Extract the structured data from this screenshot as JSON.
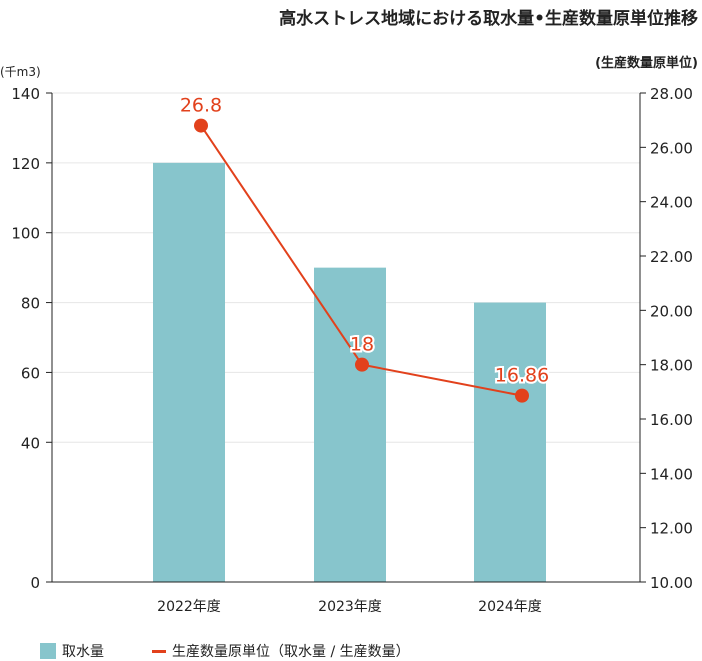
{
  "title": "高水ストレス地域における取水量•生産数量原単位推移",
  "left_unit": "(千m3)",
  "right_unit": "(生産数量原単位)",
  "legend": {
    "bar_label": "取水量",
    "line_label": "生産数量原単位（取水量 / 生産数量）"
  },
  "colors": {
    "bar": "#87c5cc",
    "line": "#e2411c",
    "grid": "#e6e6e6",
    "axis": "#222222"
  },
  "chart_data": {
    "type": "bar",
    "categories": [
      "2022年度",
      "2023年度",
      "2024年度"
    ],
    "series": [
      {
        "name": "取水量",
        "type": "bar",
        "axis": "left",
        "values": [
          120,
          90,
          80
        ]
      },
      {
        "name": "生産数量原単位（取水量 / 生産数量）",
        "type": "line",
        "axis": "right",
        "values": [
          26.8,
          18,
          16.86
        ],
        "labels": [
          "26.8",
          "18",
          "16.86"
        ]
      }
    ],
    "y_left": {
      "min": 0,
      "max": 140,
      "ticks": [
        "0",
        "40",
        "60",
        "80",
        "100",
        "120",
        "140"
      ]
    },
    "y_right": {
      "min": 10,
      "max": 28,
      "ticks": [
        "10.00",
        "12.00",
        "14.00",
        "16.00",
        "18.00",
        "20.00",
        "22.00",
        "24.00",
        "26.00",
        "28.00"
      ]
    },
    "grid": true,
    "legend_position": "bottom-left"
  }
}
